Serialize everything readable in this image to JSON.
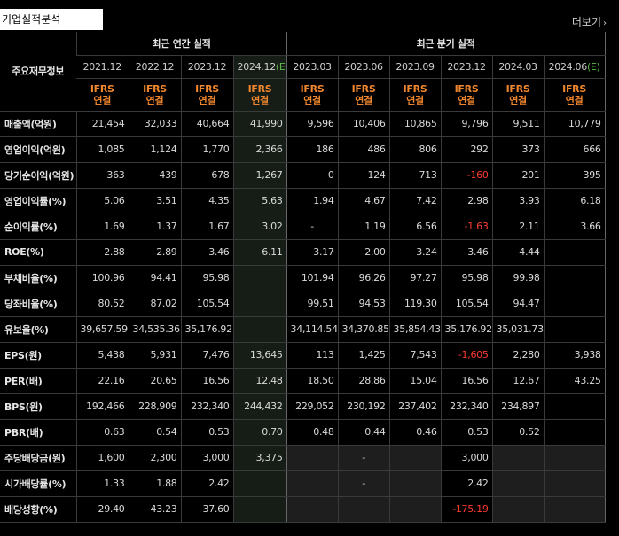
{
  "tab_title": "기업실적분석",
  "more_label": "더보기",
  "header": {
    "row_label": "주요재무정보",
    "annual_group": "최근 연간 실적",
    "quarter_group": "최근 분기 실적",
    "annual_dates": [
      "2021.12",
      "2022.12",
      "2023.12",
      "2024.12"
    ],
    "annual_est_mark": "(E)",
    "quarter_dates": [
      "2023.03",
      "2023.06",
      "2023.09",
      "2023.12",
      "2024.03",
      "2024.06"
    ],
    "quarter_est_mark": "(E)",
    "ifrs_line1": "IFRS",
    "ifrs_line2": "연결"
  },
  "rows": [
    {
      "label": "매출액(억원)",
      "annual": [
        "21,454",
        "32,033",
        "40,664",
        "41,990"
      ],
      "quarter": [
        "9,596",
        "10,406",
        "10,865",
        "9,796",
        "9,511",
        "10,779"
      ]
    },
    {
      "label": "영업이익(억원)",
      "annual": [
        "1,085",
        "1,124",
        "1,770",
        "2,366"
      ],
      "quarter": [
        "186",
        "486",
        "806",
        "292",
        "373",
        "666"
      ]
    },
    {
      "label": "당기순이익(억원)",
      "annual": [
        "363",
        "439",
        "678",
        "1,267"
      ],
      "quarter": [
        "0",
        "124",
        "713",
        "-160",
        "201",
        "395"
      ]
    },
    {
      "label": "영업이익률(%)",
      "annual": [
        "5.06",
        "3.51",
        "4.35",
        "5.63"
      ],
      "quarter": [
        "1.94",
        "4.67",
        "7.42",
        "2.98",
        "3.93",
        "6.18"
      ]
    },
    {
      "label": "순이익률(%)",
      "annual": [
        "1.69",
        "1.37",
        "1.67",
        "3.02"
      ],
      "quarter": [
        "-",
        "1.19",
        "6.56",
        "-1.63",
        "2.11",
        "3.66"
      ]
    },
    {
      "label": "ROE(%)",
      "annual": [
        "2.88",
        "2.89",
        "3.46",
        "6.11"
      ],
      "quarter": [
        "3.17",
        "2.00",
        "3.24",
        "3.46",
        "4.44",
        ""
      ]
    },
    {
      "label": "부채비율(%)",
      "annual": [
        "100.96",
        "94.41",
        "95.98",
        ""
      ],
      "quarter": [
        "101.94",
        "96.26",
        "97.27",
        "95.98",
        "99.98",
        ""
      ]
    },
    {
      "label": "당좌비율(%)",
      "annual": [
        "80.52",
        "87.02",
        "105.54",
        ""
      ],
      "quarter": [
        "99.51",
        "94.53",
        "119.30",
        "105.54",
        "94.47",
        ""
      ]
    },
    {
      "label": "유보율(%)",
      "annual": [
        "39,657.59",
        "34,535.36",
        "35,176.92",
        ""
      ],
      "quarter": [
        "34,114.54",
        "34,370.85",
        "35,854.43",
        "35,176.92",
        "35,031.73",
        ""
      ]
    },
    {
      "label": "EPS(원)",
      "annual": [
        "5,438",
        "5,931",
        "7,476",
        "13,645"
      ],
      "quarter": [
        "113",
        "1,425",
        "7,543",
        "-1,605",
        "2,280",
        "3,938"
      ]
    },
    {
      "label": "PER(배)",
      "annual": [
        "22.16",
        "20.65",
        "16.56",
        "12.48"
      ],
      "quarter": [
        "18.50",
        "28.86",
        "15.04",
        "16.56",
        "12.67",
        "43.25"
      ]
    },
    {
      "label": "BPS(원)",
      "annual": [
        "192,466",
        "228,909",
        "232,340",
        "244,432"
      ],
      "quarter": [
        "229,052",
        "230,192",
        "237,402",
        "232,340",
        "234,897",
        ""
      ]
    },
    {
      "label": "PBR(배)",
      "annual": [
        "0.63",
        "0.54",
        "0.53",
        "0.70"
      ],
      "quarter": [
        "0.48",
        "0.44",
        "0.46",
        "0.53",
        "0.52",
        ""
      ]
    },
    {
      "label": "주당배당금(원)",
      "annual": [
        "1,600",
        "2,300",
        "3,000",
        "3,375"
      ],
      "quarter": [
        "",
        "-",
        "",
        "3,000",
        "",
        ""
      ]
    },
    {
      "label": "시가배당률(%)",
      "annual": [
        "1.33",
        "1.88",
        "2.42",
        ""
      ],
      "quarter": [
        "",
        "-",
        "",
        "2.42",
        "",
        ""
      ]
    },
    {
      "label": "배당성향(%)",
      "annual": [
        "29.40",
        "43.23",
        "37.60",
        ""
      ],
      "quarter": [
        "",
        "",
        "",
        "-175.19",
        "",
        ""
      ]
    }
  ],
  "gray_cells": {
    "13": [
      4,
      5,
      6,
      8,
      9
    ],
    "14": [
      4,
      5,
      6,
      8,
      9
    ],
    "15": [
      4,
      5,
      6,
      8,
      9
    ]
  },
  "neg_color": "#ff3b30",
  "ifrs_color": "#f0862d",
  "est_color": "#5fb84c"
}
